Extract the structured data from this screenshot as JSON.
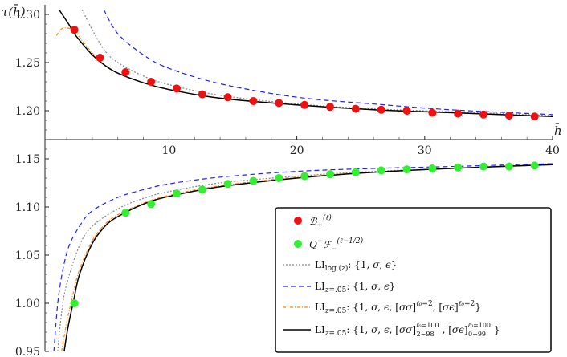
{
  "chart_data": {
    "type": "scatter",
    "xlabel": "h̄",
    "ylabel": "τ(h̄)",
    "xlim": [
      0.3,
      40
    ],
    "ylim": [
      0.95,
      1.31
    ],
    "x_axis_crossing_y": 1.17,
    "x_ticks": [
      "10",
      "20",
      "30",
      "40"
    ],
    "y_ticks": [
      "0.95",
      "1.00",
      "1.05",
      "1.10",
      "1.15",
      "1.20",
      "1.25",
      "1.30"
    ],
    "legend_position": "bottom-right",
    "series": [
      {
        "name": "𝓑₊^(ℓ)",
        "kind": "points",
        "color": "#ee1111",
        "x": [
          2.6,
          4.6,
          6.6,
          8.6,
          10.6,
          12.6,
          14.6,
          16.6,
          18.6,
          20.6,
          22.6,
          24.6,
          26.6,
          28.6,
          30.6,
          32.6,
          34.6,
          36.6,
          38.6
        ],
        "y": [
          1.284,
          1.255,
          1.24,
          1.23,
          1.223,
          1.217,
          1.214,
          1.21,
          1.208,
          1.206,
          1.204,
          1.202,
          1.201,
          1.2,
          1.198,
          1.197,
          1.196,
          1.195,
          1.194
        ]
      },
      {
        "name": "Q⁺𝓕₋^(ℓ−1/2)",
        "kind": "points",
        "color": "#33ee33",
        "x": [
          2.6,
          6.6,
          8.6,
          10.6,
          12.6,
          14.6,
          16.6,
          18.6,
          20.6,
          22.6,
          24.6,
          26.6,
          28.6,
          30.6,
          32.6,
          34.6,
          36.6,
          38.6
        ],
        "y": [
          1.0,
          1.094,
          1.103,
          1.114,
          1.118,
          1.124,
          1.127,
          1.13,
          1.132,
          1.134,
          1.136,
          1.138,
          1.139,
          1.14,
          1.141,
          1.142,
          1.142,
          1.143
        ]
      },
      {
        "name": "LI_log(z): {1, σ, ϵ}",
        "kind": "line",
        "color": "#888888",
        "dash": "2,2",
        "upper": {
          "x": [
            3.2,
            4,
            5,
            6,
            8,
            10,
            14,
            20,
            26,
            32,
            40
          ],
          "y": [
            1.305,
            1.284,
            1.262,
            1.25,
            1.236,
            1.227,
            1.216,
            1.207,
            1.202,
            1.199,
            1.195
          ]
        },
        "lower": {
          "x": [
            1.3,
            1.6,
            2.0,
            3.0,
            4.0,
            6.0,
            8,
            10,
            14,
            20,
            26,
            32,
            40
          ],
          "y": [
            0.95,
            0.99,
            1.02,
            1.06,
            1.08,
            1.098,
            1.109,
            1.116,
            1.125,
            1.132,
            1.137,
            1.14,
            1.145
          ]
        }
      },
      {
        "name": "LI_z=.05: {1, σ, ϵ}",
        "kind": "line",
        "color": "#2222ee",
        "dash": "6,4",
        "upper": {
          "x": [
            4.9,
            6,
            8,
            10,
            14,
            20,
            26,
            32,
            40
          ],
          "y": [
            1.305,
            1.28,
            1.258,
            1.244,
            1.228,
            1.214,
            1.207,
            1.201,
            1.196
          ]
        },
        "lower": {
          "x": [
            1.0,
            1.3,
            1.7,
            2.2,
            3.0,
            4.0,
            6.0,
            8,
            10,
            14,
            20,
            26,
            32,
            40
          ],
          "y": [
            0.95,
            1.0,
            1.035,
            1.06,
            1.08,
            1.096,
            1.11,
            1.118,
            1.124,
            1.131,
            1.137,
            1.14,
            1.142,
            1.145
          ]
        }
      },
      {
        "name": "LI_z=.05: {1, σ, ϵ, [σσ]^(ℓ0=2), [σϵ]^(ℓ0=2)}",
        "kind": "line",
        "color": "#ff8800",
        "dash": "4,2,1,2",
        "upper": {
          "x": [
            1.2,
            1.6,
            2.0,
            2.6,
            3.2,
            4,
            5,
            6,
            8,
            10,
            14,
            20,
            26,
            32,
            40
          ],
          "y": [
            1.278,
            1.285,
            1.286,
            1.283,
            1.273,
            1.26,
            1.247,
            1.239,
            1.229,
            1.222,
            1.213,
            1.206,
            1.201,
            1.198,
            1.194
          ]
        },
        "lower": {
          "x": [
            1.6,
            2.0,
            2.5,
            3.0,
            4.0,
            5.0,
            6.0,
            8,
            10,
            14,
            20,
            26,
            32,
            40
          ],
          "y": [
            0.95,
            0.98,
            1.01,
            1.035,
            1.065,
            1.082,
            1.092,
            1.104,
            1.112,
            1.122,
            1.131,
            1.136,
            1.14,
            1.144
          ]
        }
      },
      {
        "name": "LI_z=.05: {1, σ, ϵ, [σσ]^(ℓ0=100)_(2−98), [σϵ]^(ℓ0=100)_(0−99)}",
        "kind": "line",
        "color": "#000000",
        "dash": "",
        "upper": {
          "x": [
            1.4,
            1.8,
            2.2,
            2.6,
            3.2,
            4,
            5,
            6,
            8,
            10,
            14,
            20,
            26,
            32,
            40
          ],
          "y": [
            1.305,
            1.297,
            1.289,
            1.28,
            1.27,
            1.258,
            1.247,
            1.239,
            1.229,
            1.222,
            1.213,
            1.206,
            1.201,
            1.198,
            1.194
          ]
        },
        "lower": {
          "x": [
            1.8,
            2.1,
            2.5,
            3.0,
            4.0,
            5.0,
            6.0,
            8,
            10,
            14,
            20,
            26,
            32,
            40
          ],
          "y": [
            0.95,
            0.975,
            1.0,
            1.03,
            1.062,
            1.08,
            1.09,
            1.103,
            1.111,
            1.121,
            1.13,
            1.136,
            1.14,
            1.144
          ]
        }
      }
    ]
  }
}
